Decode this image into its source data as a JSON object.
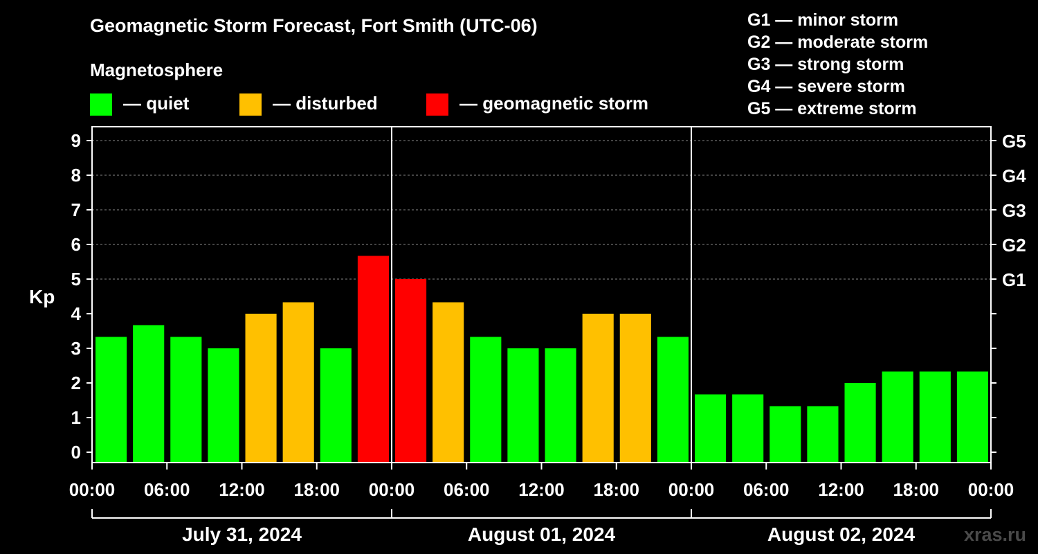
{
  "title": "Geomagnetic Storm Forecast, Fort Smith (UTC-06)",
  "legend": {
    "heading": "Magnetosphere",
    "items": [
      {
        "label": "— quiet",
        "color": "#00ff00"
      },
      {
        "label": "— disturbed",
        "color": "#ffc000"
      },
      {
        "label": "— geomagnetic storm",
        "color": "#ff0000"
      }
    ]
  },
  "g_scale": [
    {
      "label": "G1 — minor storm"
    },
    {
      "label": "G2 — moderate storm"
    },
    {
      "label": "G3 — strong storm"
    },
    {
      "label": "G4 — severe storm"
    },
    {
      "label": "G5 — extreme storm"
    }
  ],
  "watermark": "xras.ru",
  "chart_data": {
    "type": "bar",
    "ylabel": "Kp",
    "ylim": [
      -0.3,
      9.4
    ],
    "yticks": [
      0,
      1,
      2,
      3,
      4,
      5,
      6,
      7,
      8,
      9
    ],
    "ytick_labels": [
      "0",
      "1",
      "2",
      "3",
      "4",
      "5",
      "6",
      "7",
      "8",
      "9"
    ],
    "right_ticks": [
      {
        "value": 5,
        "label": "G1"
      },
      {
        "value": 6,
        "label": "G2"
      },
      {
        "value": 7,
        "label": "G3"
      },
      {
        "value": 8,
        "label": "G4"
      },
      {
        "value": 9,
        "label": "G5"
      }
    ],
    "grid_values": [
      5,
      6,
      7,
      8,
      9
    ],
    "xlim_hours": [
      0,
      72
    ],
    "xticks_hours": [
      0,
      6,
      12,
      18,
      24,
      30,
      36,
      42,
      48,
      54,
      60,
      66,
      72
    ],
    "xtick_labels": [
      "00:00",
      "06:00",
      "12:00",
      "18:00",
      "00:00",
      "06:00",
      "12:00",
      "18:00",
      "00:00",
      "06:00",
      "12:00",
      "18:00",
      "00:00"
    ],
    "days": [
      {
        "label": "July 31, 2024",
        "start": 0,
        "end": 24
      },
      {
        "label": "August 01, 2024",
        "start": 24,
        "end": 48
      },
      {
        "label": "August 02, 2024",
        "start": 48,
        "end": 72
      }
    ],
    "bar_hours": 3,
    "values": [
      3.33,
      3.67,
      3.33,
      3.0,
      4.0,
      4.33,
      3.0,
      5.67,
      5.0,
      4.33,
      3.33,
      3.0,
      3.0,
      4.0,
      4.0,
      3.33,
      1.67,
      1.67,
      1.33,
      1.33,
      2.0,
      2.33,
      2.33,
      2.33
    ],
    "colors": {
      "quiet": "#00ff00",
      "disturbed": "#ffc000",
      "storm": "#ff0000"
    },
    "thresholds": {
      "disturbed": 4,
      "storm": 5
    }
  }
}
